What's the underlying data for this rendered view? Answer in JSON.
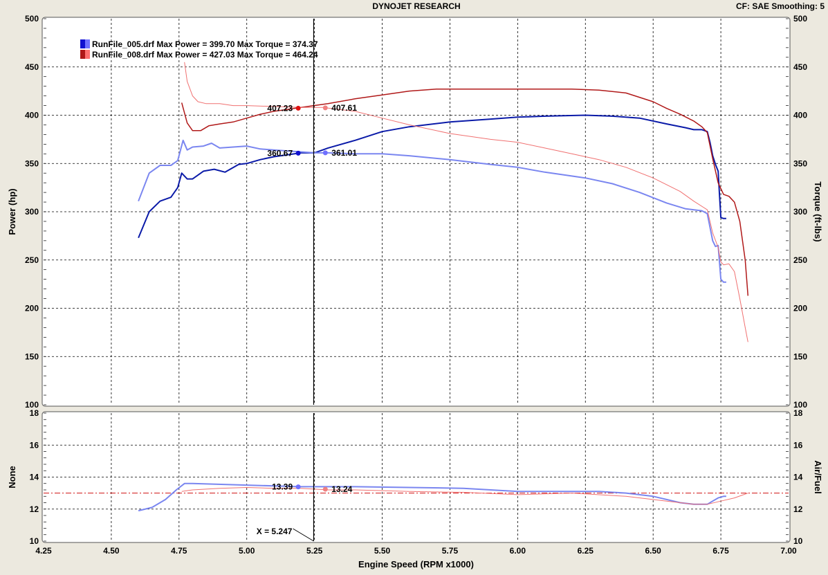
{
  "header": {
    "title": "DYNOJET RESEARCH",
    "settings": "CF: SAE  Smoothing: 5"
  },
  "chart_data": {
    "type": "line",
    "x_label": "Engine Speed (RPM x1000)",
    "x_ticks": [
      "4.25",
      "4.50",
      "4.75",
      "5.00",
      "5.25",
      "5.50",
      "5.75",
      "6.00",
      "6.25",
      "6.50",
      "6.75",
      "7.00"
    ],
    "xlim": [
      4.25,
      7.0
    ],
    "top_panel": {
      "ylabel_left": "Power (hp)",
      "ylabel_right": "Torque (ft-lbs)",
      "ylim": [
        100,
        500
      ],
      "y_ticks": [
        "100",
        "150",
        "200",
        "250",
        "300",
        "350",
        "400",
        "450",
        "500"
      ],
      "legend": [
        {
          "text": "RunFile_005.drf Max Power = 399.70 Max Torque = 374.37",
          "color": "#1010d0",
          "color2": "#7070ff"
        },
        {
          "text": "RunFile_008.drf Max Power = 427.03 Max Torque = 464.24",
          "color": "#b01818",
          "color2": "#ff7070"
        }
      ],
      "series": [
        {
          "name": "RunFile_005.drf Power",
          "color": "#0a1aa8",
          "width": 2,
          "x": [
            4.6,
            4.64,
            4.68,
            4.72,
            4.745,
            4.76,
            4.78,
            4.8,
            4.84,
            4.88,
            4.92,
            4.97,
            5.0,
            5.05,
            5.1,
            5.15,
            5.2,
            5.25,
            5.3,
            5.4,
            5.5,
            5.6,
            5.75,
            5.9,
            6.0,
            6.1,
            6.25,
            6.35,
            6.45,
            6.55,
            6.62,
            6.65,
            6.68,
            6.7,
            6.71,
            6.72,
            6.73,
            6.74,
            6.745,
            6.75,
            6.76,
            6.77
          ],
          "y": [
            273,
            300,
            311,
            315,
            325,
            340,
            334,
            334,
            342,
            344,
            341,
            349,
            350,
            354,
            357,
            359,
            361,
            361,
            366,
            374,
            383,
            388,
            393,
            396,
            398,
            399,
            400,
            399,
            397,
            391,
            387,
            385,
            385,
            383,
            372,
            358,
            349,
            342,
            318,
            294,
            293,
            293
          ]
        },
        {
          "name": "RunFile_005.drf Torque",
          "color": "#7a86f0",
          "width": 2,
          "x": [
            4.6,
            4.64,
            4.68,
            4.72,
            4.745,
            4.765,
            4.78,
            4.8,
            4.84,
            4.87,
            4.9,
            4.95,
            5.0,
            5.05,
            5.1,
            5.2,
            5.25,
            5.3,
            5.4,
            5.5,
            5.6,
            5.75,
            5.9,
            6.0,
            6.1,
            6.25,
            6.35,
            6.45,
            6.55,
            6.62,
            6.68,
            6.7,
            6.72,
            6.73,
            6.74,
            6.75,
            6.76,
            6.77
          ],
          "y": [
            311,
            340,
            348,
            348,
            353,
            374,
            364,
            367,
            368,
            371,
            366,
            367,
            368,
            365,
            364,
            362,
            361,
            361,
            360,
            360,
            358,
            354,
            349,
            346,
            341,
            335,
            329,
            320,
            309,
            303,
            301,
            298,
            270,
            264,
            265,
            230,
            227,
            227
          ]
        },
        {
          "name": "RunFile_008.drf Power",
          "color": "#b01818",
          "width": 1.5,
          "x": [
            4.76,
            4.78,
            4.8,
            4.83,
            4.86,
            4.9,
            4.95,
            5.0,
            5.05,
            5.1,
            5.15,
            5.2,
            5.3,
            5.4,
            5.5,
            5.6,
            5.7,
            5.8,
            5.9,
            6.0,
            6.1,
            6.2,
            6.3,
            6.4,
            6.5,
            6.55,
            6.6,
            6.65,
            6.68,
            6.7,
            6.72,
            6.74,
            6.76,
            6.78,
            6.8,
            6.82,
            6.84,
            6.85
          ],
          "y": [
            413,
            392,
            384,
            384,
            389,
            391,
            393,
            397,
            401,
            404,
            406,
            408,
            412,
            417,
            421,
            425,
            427,
            427,
            427,
            427,
            427,
            427,
            426,
            423,
            414,
            407,
            401,
            394,
            388,
            382,
            355,
            330,
            318,
            316,
            310,
            290,
            250,
            213
          ]
        },
        {
          "name": "RunFile_008.drf Torque",
          "color": "#f07070",
          "width": 1,
          "x": [
            4.77,
            4.78,
            4.8,
            4.82,
            4.85,
            4.9,
            4.95,
            5.0,
            5.1,
            5.2,
            5.28,
            5.4,
            5.5,
            5.6,
            5.75,
            5.9,
            6.0,
            6.1,
            6.2,
            6.3,
            6.4,
            6.5,
            6.6,
            6.65,
            6.7,
            6.72,
            6.74,
            6.75,
            6.76,
            6.78,
            6.8,
            6.82,
            6.84,
            6.85
          ],
          "y": [
            455,
            435,
            420,
            414,
            412,
            412,
            410,
            410,
            409,
            408,
            408,
            404,
            397,
            390,
            381,
            375,
            372,
            366,
            360,
            354,
            346,
            335,
            321,
            311,
            302,
            278,
            263,
            248,
            245,
            246,
            238,
            210,
            180,
            165
          ]
        }
      ],
      "markers": [
        {
          "x": 5.19,
          "y": 407.23,
          "label": "407.23",
          "color": "#e01010",
          "side": "left"
        },
        {
          "x": 5.29,
          "y": 407.61,
          "label": "407.61",
          "color": "#f08080",
          "side": "right"
        },
        {
          "x": 5.19,
          "y": 360.67,
          "label": "360.67",
          "color": "#1010d0",
          "side": "left"
        },
        {
          "x": 5.29,
          "y": 361.01,
          "label": "361.01",
          "color": "#7070ff",
          "side": "right"
        }
      ]
    },
    "bottom_panel": {
      "ylabel_left": "None",
      "ylabel_right": "Air/Fuel",
      "ylim": [
        10,
        18
      ],
      "y_ticks": [
        "10",
        "12",
        "14",
        "16",
        "18"
      ],
      "reference_line": 13.0,
      "series": [
        {
          "name": "RunFile_005.drf Air/Fuel",
          "color": "#7a86f0",
          "width": 2,
          "x": [
            4.6,
            4.65,
            4.7,
            4.74,
            4.77,
            4.8,
            5.0,
            5.2,
            5.4,
            5.6,
            5.8,
            5.9,
            6.0,
            6.1,
            6.2,
            6.3,
            6.4,
            6.5,
            6.6,
            6.65,
            6.7,
            6.72,
            6.74,
            6.76,
            6.77
          ],
          "y": [
            11.9,
            12.1,
            12.6,
            13.2,
            13.6,
            13.6,
            13.5,
            13.4,
            13.4,
            13.35,
            13.3,
            13.2,
            13.1,
            13.1,
            13.1,
            13.1,
            13.0,
            12.8,
            12.4,
            12.3,
            12.3,
            12.5,
            12.7,
            12.8,
            12.8
          ]
        },
        {
          "name": "RunFile_008.drf Air/Fuel",
          "color": "#f07070",
          "width": 1,
          "x": [
            4.76,
            4.8,
            4.9,
            5.0,
            5.1,
            5.2,
            5.3,
            5.4,
            5.6,
            5.8,
            6.0,
            6.2,
            6.4,
            6.55,
            6.65,
            6.7,
            6.75,
            6.8,
            6.85
          ],
          "y": [
            13.1,
            13.2,
            13.3,
            13.35,
            13.3,
            13.3,
            13.2,
            13.2,
            13.1,
            13.05,
            12.9,
            13.0,
            12.8,
            12.5,
            12.3,
            12.3,
            12.5,
            12.7,
            13.0
          ]
        }
      ],
      "markers": [
        {
          "x": 5.19,
          "y": 13.39,
          "label": "13.39",
          "color": "#7070ff",
          "side": "left"
        },
        {
          "x": 5.29,
          "y": 13.24,
          "label": "13.24",
          "color": "#f08080",
          "side": "right"
        }
      ]
    },
    "cursor": {
      "x": 5.247,
      "label": "X = 5.247"
    },
    "grid": true
  }
}
